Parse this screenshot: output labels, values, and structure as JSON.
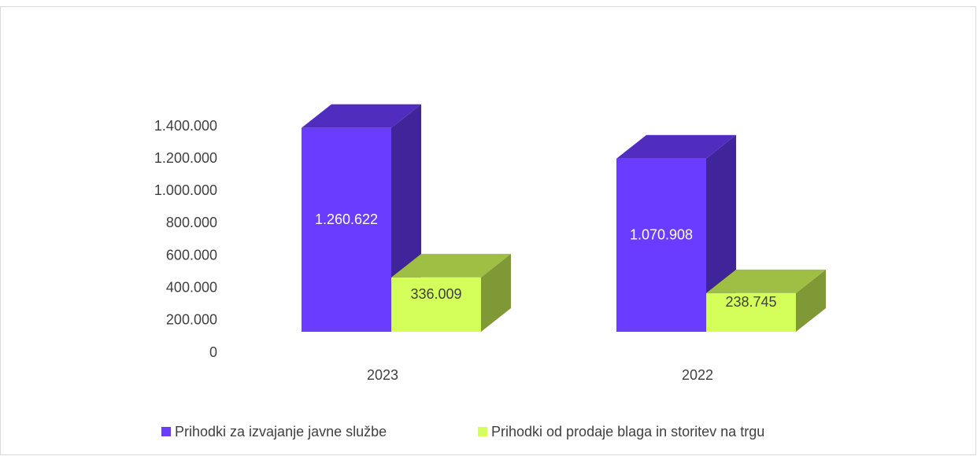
{
  "chart_data": {
    "type": "bar3d",
    "categories": [
      "2023",
      "2022"
    ],
    "series": [
      {
        "name": "Prihodki za izvajanje javne službe",
        "color": "#6a3cff",
        "values": [
          1260622,
          1070908
        ],
        "value_labels": [
          "1.260.622",
          "1.070.908"
        ]
      },
      {
        "name": "Prihodki od prodaje blaga in storitev na trgu",
        "color": "#d4ff5a",
        "values": [
          336009,
          238745
        ],
        "value_labels": [
          "336.009",
          "238.745"
        ]
      }
    ],
    "ylim": [
      0,
      1400000
    ],
    "yticks": [
      0,
      {
        "value": 200000,
        "label": "200.000"
      },
      {
        "value": 400000,
        "label": "400.000"
      },
      {
        "value": 600000,
        "label": "600.000"
      },
      {
        "value": 800000,
        "label": "800.000"
      },
      {
        "value": 1000000,
        "label": "1.000.000"
      },
      {
        "value": 1200000,
        "label": "1.200.000"
      },
      {
        "value": 1400000,
        "label": "1.400.000"
      }
    ],
    "legend": "bottom"
  }
}
